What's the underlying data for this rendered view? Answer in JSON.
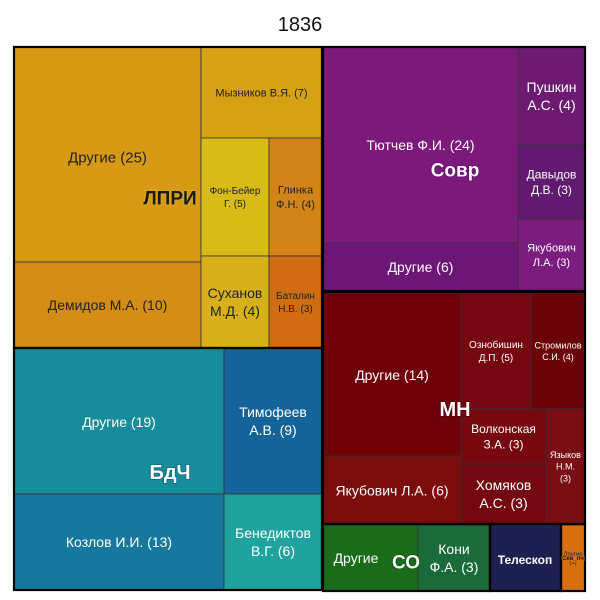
{
  "chart_data": {
    "type": "treemap",
    "title": "1836",
    "groups": [
      {
        "label": "ЛПРИ",
        "color": "#d89a14",
        "items": [
          {
            "name": "Другие",
            "value": 25,
            "label": [
              "Другие (25)"
            ],
            "color": "#d89a14"
          },
          {
            "name": "Мызников В.Я.",
            "value": 7,
            "label": [
              "Мызников В.Я. (7)"
            ],
            "color": "#d7a116"
          },
          {
            "name": "Фон-Бейер Г.",
            "value": 5,
            "label": [
              "Фон-Бейер",
              "Г. (5)"
            ],
            "color": "#d9bb18"
          },
          {
            "name": "Глинка Ф.Н.",
            "value": 4,
            "label": [
              "Глинка",
              "Ф.Н. (4)"
            ],
            "color": "#d28416"
          },
          {
            "name": "Демидов М.А.",
            "value": 10,
            "label": [
              "Демидов М.А. (10)"
            ],
            "color": "#d38d16"
          },
          {
            "name": "Суханов М.Д.",
            "value": 4,
            "label": [
              "Суханов",
              "М.Д. (4)"
            ],
            "color": "#d7b01a"
          },
          {
            "name": "Баталин Н.В.",
            "value": 3,
            "label": [
              "Баталин",
              "Н.В. (3)"
            ],
            "color": "#d06d12"
          }
        ]
      },
      {
        "label": "Совр",
        "color": "#7a1a7a",
        "items": [
          {
            "name": "Тютчев Ф.И.",
            "value": 24,
            "label": [
              "Тютчев Ф.И. (24)"
            ],
            "color": "#7b1a7b"
          },
          {
            "name": "Пушкин А.С.",
            "value": 4,
            "label": [
              "Пушкин",
              "А.С. (4)"
            ],
            "color": "#6e1a72"
          },
          {
            "name": "Давыдов Д.В.",
            "value": 3,
            "label": [
              "Давыдов",
              "Д.В. (3)"
            ],
            "color": "#621a70"
          },
          {
            "name": "Другие",
            "value": 6,
            "label": [
              "Другие (6)"
            ],
            "color": "#6c1775"
          },
          {
            "name": "Якубович Л.А.",
            "value": 3,
            "label": [
              "Якубович",
              "Л.А. (3)"
            ],
            "color": "#7a1d7e"
          }
        ]
      },
      {
        "label": "МН",
        "color": "#6e0008",
        "items": [
          {
            "name": "Другие",
            "value": 14,
            "label": [
              "Другие (14)"
            ],
            "color": "#6f0009"
          },
          {
            "name": "Ознобишин Д.П.",
            "value": 5,
            "label": [
              "Ознобишин",
              "Д.П. (5)"
            ],
            "color": "#760710"
          },
          {
            "name": "Стромилов С.И.",
            "value": 4,
            "label": [
              "Стромилов",
              "С.И. (4)"
            ],
            "color": "#6a0408"
          },
          {
            "name": "Волконская З.А.",
            "value": 3,
            "label": [
              "Волконская",
              "З.А. (3)"
            ],
            "color": "#78080f"
          },
          {
            "name": "Якубович Л.А.",
            "value": 6,
            "label": [
              "Якубович Л.А. (6)"
            ],
            "color": "#7a0c0c"
          },
          {
            "name": "Хомяков А.С.",
            "value": 3,
            "label": [
              "Хомяков",
              "А.С. (3)"
            ],
            "color": "#740810"
          },
          {
            "name": "Языков Н.М.",
            "value": 3,
            "label": [
              "Языков",
              "Н.М.",
              "(3)"
            ],
            "color": "#7a0e12"
          }
        ]
      },
      {
        "label": "БдЧ",
        "color": "#178c9a",
        "items": [
          {
            "name": "Другие",
            "value": 19,
            "label": [
              "Другие (19)"
            ],
            "color": "#178d9b"
          },
          {
            "name": "Тимофеев А.В.",
            "value": 9,
            "label": [
              "Тимофеев",
              "А.В. (9)"
            ],
            "color": "#14649a"
          },
          {
            "name": "Козлов И.И.",
            "value": 13,
            "label": [
              "Козлов И.И. (13)"
            ],
            "color": "#16789e"
          },
          {
            "name": "Бенедиктов В.Г.",
            "value": 6,
            "label": [
              "Бенедиктов",
              "В.Г. (6)"
            ],
            "color": "#1ea39e"
          }
        ]
      },
      {
        "label": "СО",
        "color": "#1a6b1a",
        "items": [
          {
            "name": "Другие",
            "value": 3,
            "label": [
              "Другие"
            ],
            "color": "#1a6b1a"
          },
          {
            "name": "Кони Ф.А.",
            "value": 3,
            "label": [
              "Кони",
              "Ф.А. (3)"
            ],
            "color": "#1b6a3a"
          }
        ]
      },
      {
        "label": "Телескоп",
        "color": "#1d2050",
        "items": [
          {
            "name": "Телескоп",
            "value": 4,
            "label": [],
            "color": "#1d2050"
          }
        ]
      },
      {
        "label": "Сев_пч",
        "color": "#d87010",
        "items": [
          {
            "name": "Другие",
            "value": 1,
            "label": [
              "Другие",
              "(1)"
            ],
            "color": "#d87010"
          }
        ]
      }
    ]
  }
}
